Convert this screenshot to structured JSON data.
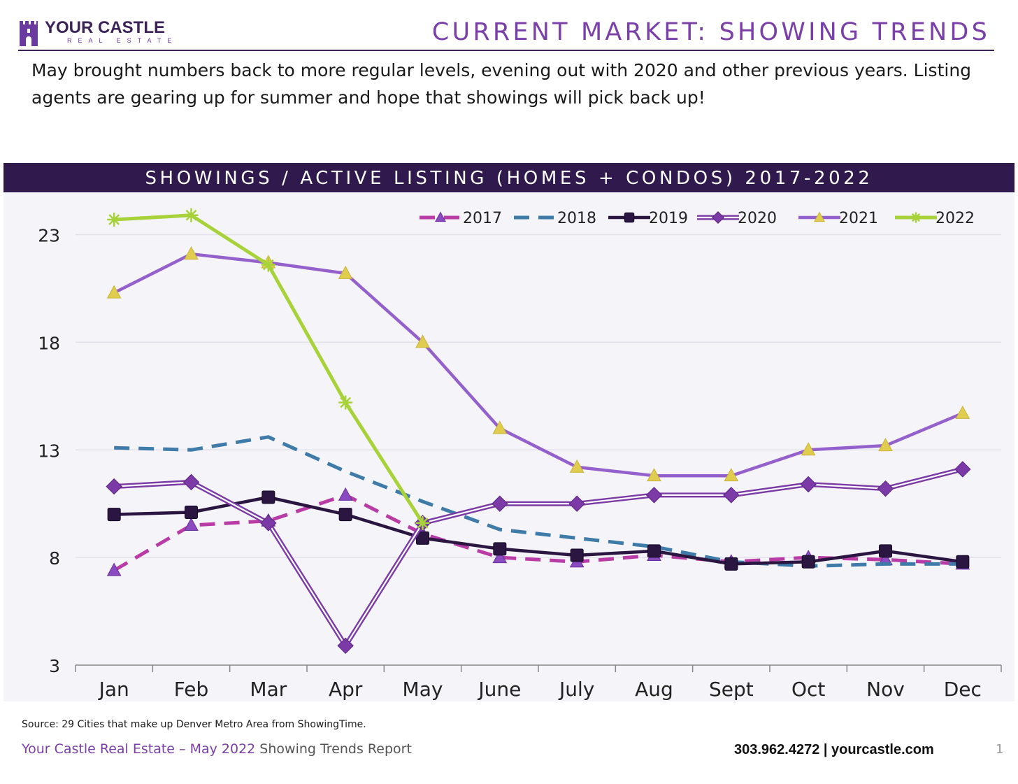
{
  "header": {
    "logo_name": "YOUR CASTLE",
    "logo_sub": "REAL ESTATE",
    "title": "CURRENT MARKET: SHOWING TRENDS"
  },
  "intro": "May brought numbers back to more regular levels, evening out with 2020 and other previous years. Listing agents are gearing up for summer and hope that showings will pick back up!",
  "colors": {
    "brand_dark": "#30194d",
    "brand_purple": "#7a3fa8"
  },
  "chart_data": {
    "type": "line",
    "title": "SHOWINGS / ACTIVE LISTING (HOMES + CONDOS) 2017-2022",
    "categories": [
      "Jan",
      "Feb",
      "Mar",
      "Apr",
      "May",
      "June",
      "July",
      "Aug",
      "Sept",
      "Oct",
      "Nov",
      "Dec"
    ],
    "ylim": [
      3,
      24
    ],
    "yticks": [
      3,
      8,
      13,
      18,
      23
    ],
    "grid": true,
    "legend_position": "top-right",
    "series": [
      {
        "name": "2017",
        "color": "#b83ba6",
        "style": "dashed",
        "marker": "triangle",
        "marker_color": "#8a4bc0",
        "values": [
          7.4,
          9.5,
          9.7,
          10.9,
          9.1,
          8.0,
          7.8,
          8.1,
          7.8,
          8.0,
          7.9,
          7.7
        ]
      },
      {
        "name": "2018",
        "color": "#3f7ba8",
        "style": "dashed",
        "marker": "none",
        "marker_color": "#3f7ba8",
        "values": [
          13.1,
          13.0,
          13.6,
          12.0,
          10.6,
          9.3,
          8.9,
          8.5,
          7.8,
          7.6,
          7.7,
          7.7
        ]
      },
      {
        "name": "2019",
        "color": "#2a1640",
        "style": "solid",
        "marker": "square",
        "marker_color": "#2a1640",
        "values": [
          10.0,
          10.1,
          10.8,
          10.0,
          8.9,
          8.4,
          8.1,
          8.3,
          7.7,
          7.8,
          8.3,
          7.8
        ]
      },
      {
        "name": "2020",
        "color": "#7b3aa6",
        "style": "double",
        "marker": "diamond",
        "marker_color": "#7b3aa6",
        "values": [
          11.3,
          11.5,
          9.6,
          3.9,
          9.6,
          10.5,
          10.5,
          10.9,
          10.9,
          11.4,
          11.2,
          12.1
        ]
      },
      {
        "name": "2021",
        "color": "#9461cc",
        "style": "solid",
        "marker": "triangle",
        "marker_color": "#e0cc4e",
        "values": [
          20.3,
          22.1,
          21.7,
          21.2,
          18.0,
          14.0,
          12.2,
          11.8,
          11.8,
          13.0,
          13.2,
          14.7
        ]
      },
      {
        "name": "2022",
        "color": "#a8d23a",
        "style": "solid",
        "marker": "star",
        "marker_color": "#a8d23a",
        "values": [
          23.7,
          23.9,
          21.6,
          15.2,
          9.6,
          null,
          null,
          null,
          null,
          null,
          null,
          null
        ]
      }
    ]
  },
  "footer": {
    "source": "Source: 29 Cities that make up Denver Metro Area from ShowingTime.",
    "brand": "Your Castle Real Estate – May 2022",
    "report": " Showing Trends Report",
    "contact": "303.962.4272 | yourcastle.com",
    "page": "1"
  }
}
